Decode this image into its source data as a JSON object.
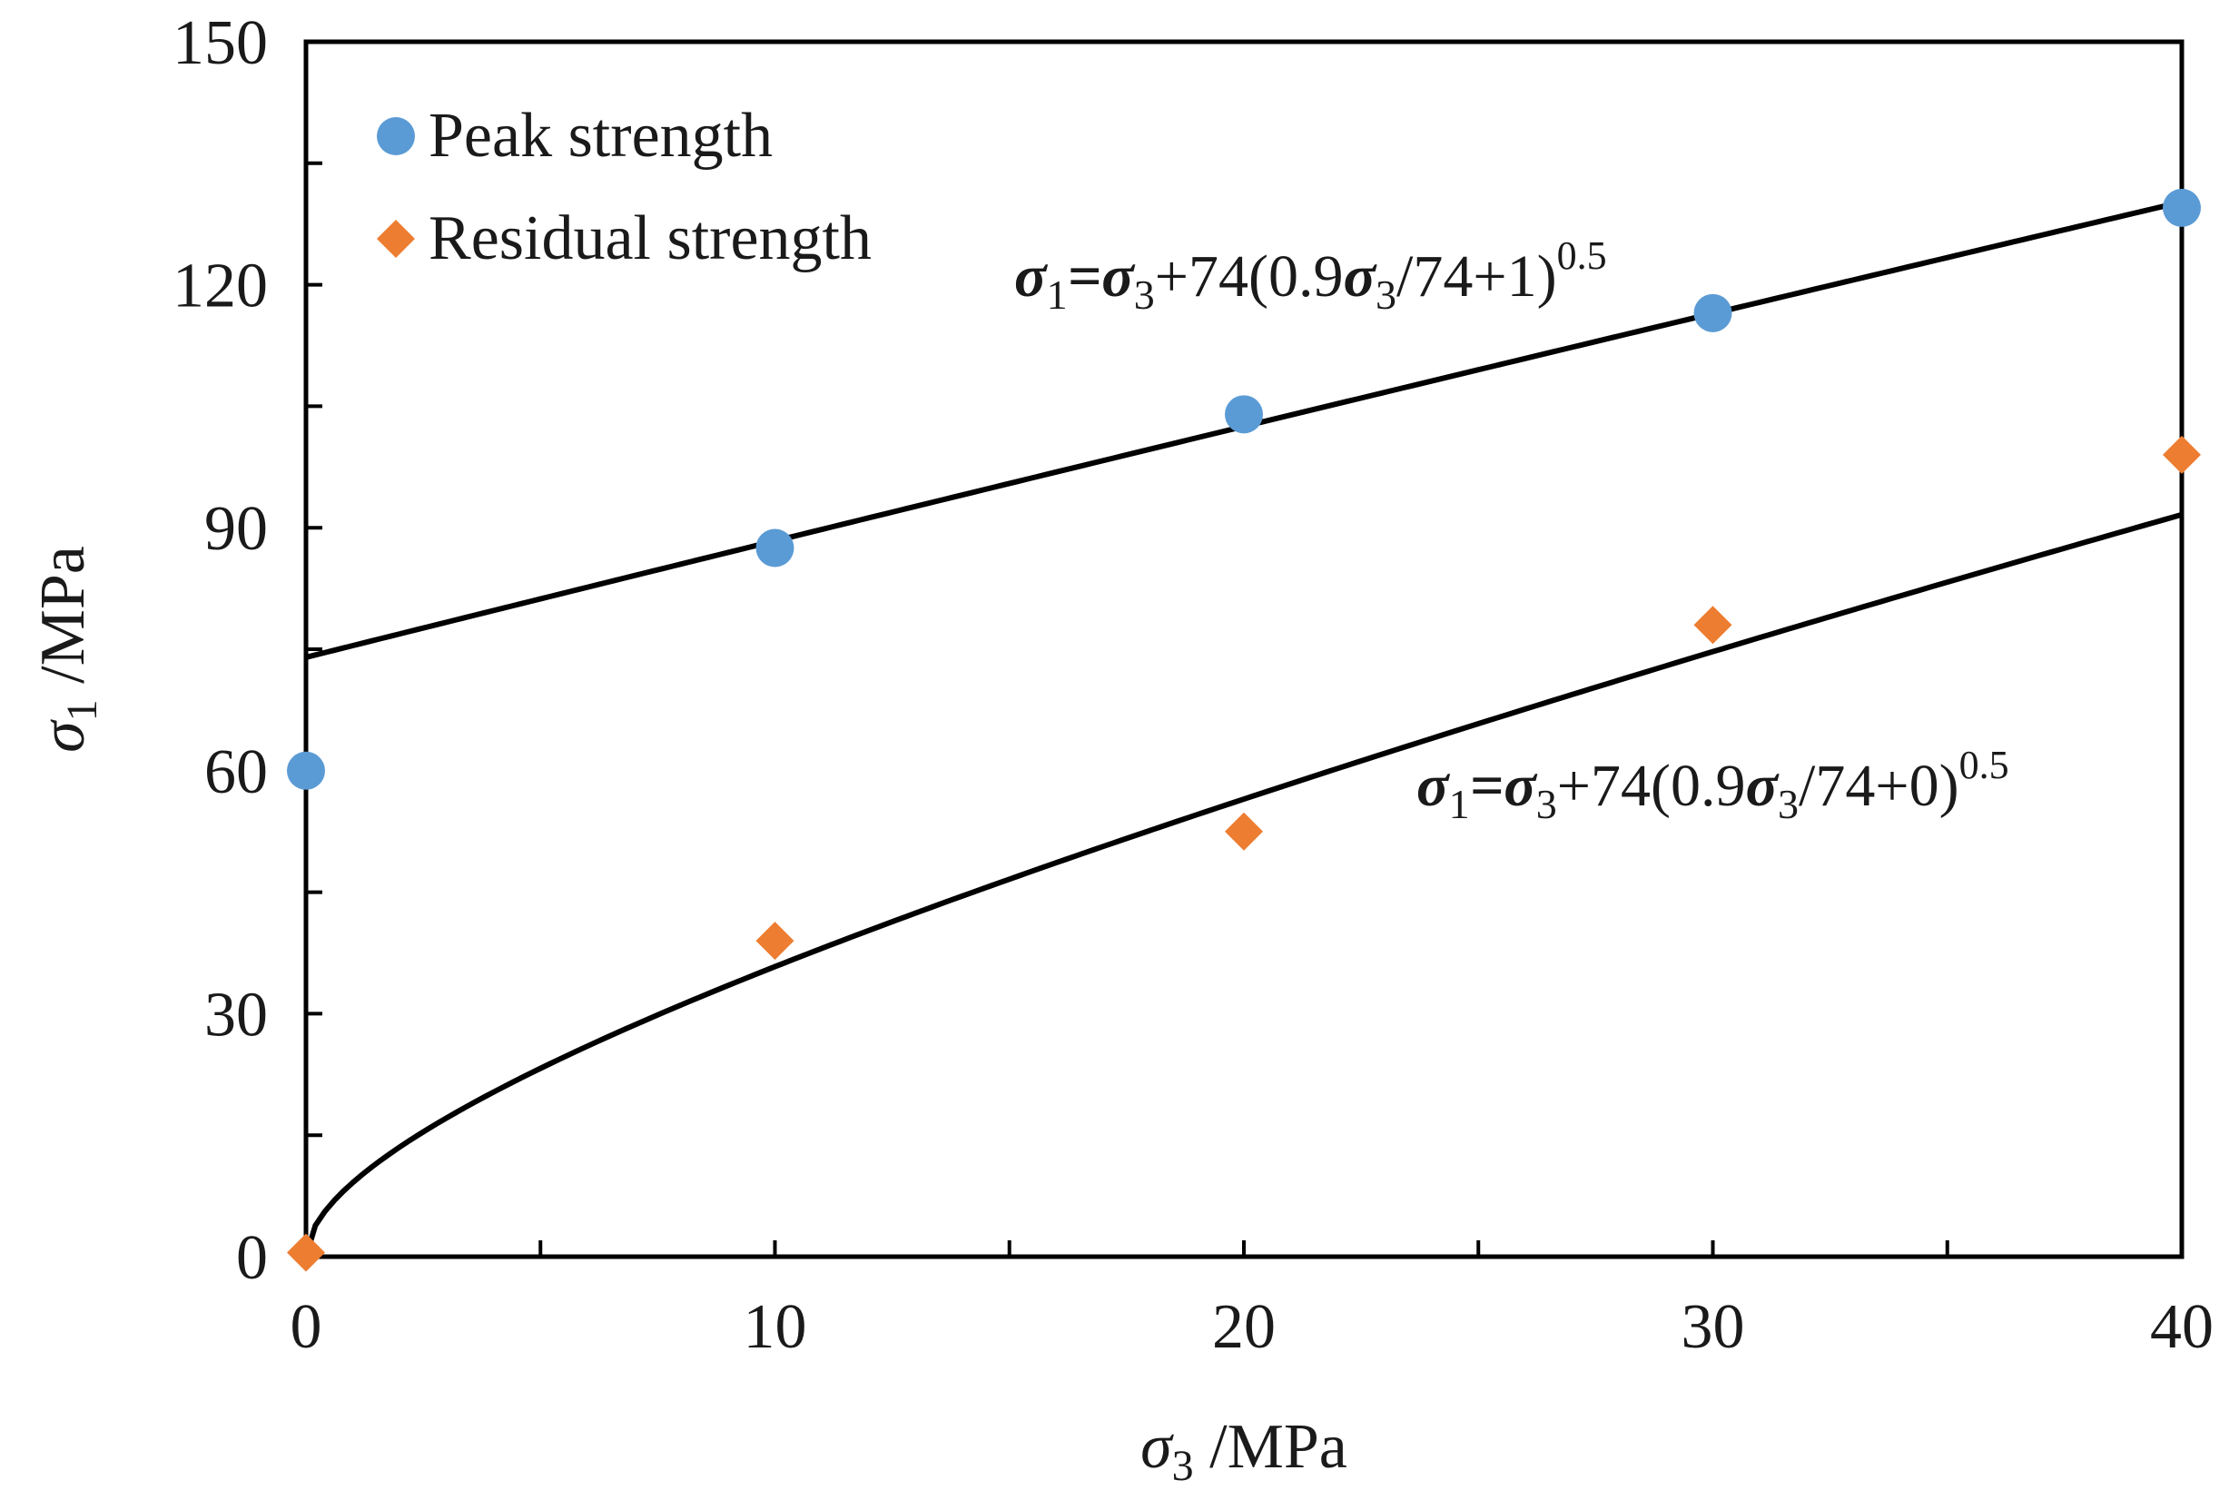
{
  "chart_data": {
    "type": "scatter",
    "title": "",
    "xlabel": {
      "symbol": "σ",
      "sub": "3",
      "unit": " /MPa"
    },
    "ylabel": {
      "symbol": "σ",
      "sub": "1",
      "unit": " /MPa"
    },
    "xlim": [
      0,
      40
    ],
    "ylim": [
      0,
      150
    ],
    "xticks": [
      0,
      10,
      20,
      30,
      40
    ],
    "xticks_minor": [
      5,
      15,
      25,
      35
    ],
    "yticks": [
      0,
      30,
      60,
      90,
      120,
      150
    ],
    "yticks_minor": [
      15,
      45,
      75,
      105,
      135
    ],
    "grid": false,
    "legend_position": "top-left",
    "series": [
      {
        "name": "Peak strength",
        "marker": "circle",
        "color": "#5b9bd5",
        "x": [
          0,
          10,
          20,
          30,
          40
        ],
        "y": [
          60,
          87.5,
          104,
          116.5,
          129.5
        ]
      },
      {
        "name": "Residual strength",
        "marker": "diamond",
        "color": "#ed7d31",
        "x": [
          0,
          10,
          20,
          30,
          40
        ],
        "y": [
          0.5,
          39,
          52.5,
          78,
          99
        ]
      }
    ],
    "fits": [
      {
        "name": "peak-fit",
        "color": "#000000",
        "m": 0.9,
        "sigma_c": 74,
        "s": 1,
        "x_range": [
          0,
          40
        ],
        "label": {
          "lhs": "σ",
          "lhs_sub": "1",
          "eq": "=",
          "s3": "σ",
          "s3_sub": "3",
          "mid": "+74(0.9",
          "s3b": "σ",
          "s3b_sub": "3",
          "tail": "/74+1)",
          "sup": "0.5"
        }
      },
      {
        "name": "residual-fit",
        "color": "#000000",
        "m": 0.9,
        "sigma_c": 74,
        "s": 0,
        "x_range": [
          0,
          40
        ],
        "label": {
          "lhs": "σ",
          "lhs_sub": "1",
          "eq": "=",
          "s3": "σ",
          "s3_sub": "3",
          "mid": "+74(0.9",
          "s3b": "σ",
          "s3b_sub": "3",
          "tail": "/74+0)",
          "sup": "0.5"
        }
      }
    ]
  }
}
